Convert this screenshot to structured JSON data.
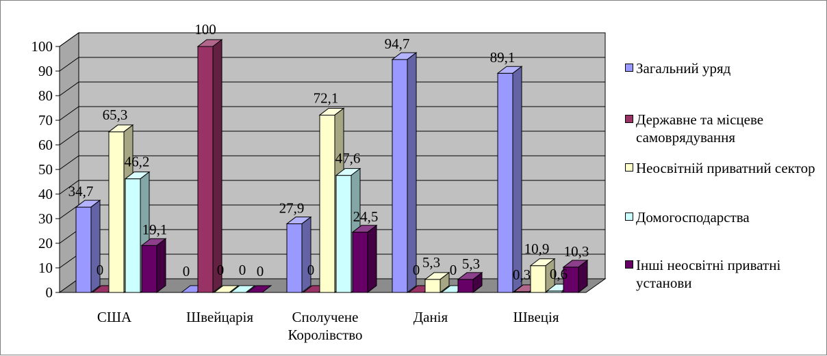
{
  "chart_data": {
    "type": "bar",
    "categories": [
      "США",
      "Швейцарія",
      "Сполучене\nКоролівство",
      "Данія",
      "Швеція"
    ],
    "ylim": [
      0,
      100
    ],
    "yticks": [
      0,
      10,
      20,
      30,
      40,
      50,
      60,
      70,
      80,
      90,
      100
    ],
    "grid": true,
    "legend_position": "right",
    "series": [
      {
        "name": "Загальний уряд",
        "color": "#9999ff",
        "values": [
          34.7,
          0,
          27.9,
          94.7,
          89.1
        ],
        "labels": [
          "34,7",
          "0",
          "27,9",
          "94,7",
          "89,1"
        ]
      },
      {
        "name": "Державне та місцеве самоврядування",
        "color": "#993366",
        "values": [
          0,
          100,
          0,
          0,
          0.3
        ],
        "labels": [
          "0",
          "100",
          "0",
          "0",
          "0,3"
        ]
      },
      {
        "name": "Неосвітній приватний сектор",
        "color": "#ffffcc",
        "values": [
          65.3,
          0,
          72.1,
          5.3,
          10.9
        ],
        "labels": [
          "65,3",
          "0",
          "72,1",
          "5,3",
          "10,9"
        ]
      },
      {
        "name": "Домогосподарства",
        "color": "#ccffff",
        "values": [
          46.2,
          0,
          47.6,
          0,
          0.6
        ],
        "labels": [
          "46,2",
          "0",
          "47,6",
          "0",
          "0,6"
        ]
      },
      {
        "name": "Інші неосвітні приватні установи",
        "color": "#660066",
        "values": [
          19.1,
          0,
          24.5,
          5.3,
          10.3
        ],
        "labels": [
          "19,1",
          "0",
          "24,5",
          "5,3",
          "10,3"
        ]
      }
    ]
  }
}
